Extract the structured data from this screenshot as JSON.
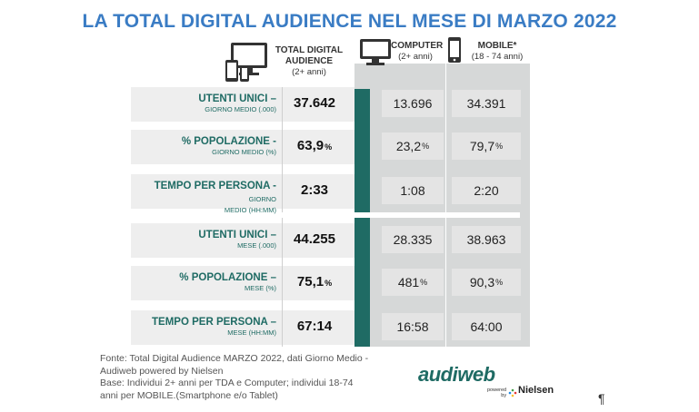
{
  "title": "LA TOTAL DIGITAL AUDIENCE NEL MESE DI MARZO 2022",
  "colors": {
    "title": "#3a7cc4",
    "label": "#1f6b64",
    "bar": "#1f6b64",
    "bg_panel": "#d6d8d8"
  },
  "headers": {
    "tda": {
      "label_line1": "TOTAL DIGITAL",
      "label_line2": "AUDIENCE",
      "sub": "(2+ anni)",
      "icon": "multi-device-icon"
    },
    "computer": {
      "label": "COMPUTER",
      "sub": "(2+ anni)",
      "icon": "monitor-icon"
    },
    "mobile": {
      "label": "MOBILE*",
      "sub": "(18 - 74 anni)",
      "icon": "smartphone-icon"
    }
  },
  "chart_data": {
    "type": "table",
    "columns": [
      "TOTAL DIGITAL AUDIENCE (2+ anni)",
      "COMPUTER (2+ anni)",
      "MOBILE* (18 - 74 anni)"
    ],
    "rows": [
      {
        "label": "UTENTI UNICI –",
        "sub": "GIORNO MEDIO (.000)",
        "tda": "37.642",
        "computer": "13.696",
        "mobile": "34.391",
        "pct": false
      },
      {
        "label": "% POPOLAZIONE -",
        "sub": "GIORNO MEDIO (%)",
        "tda": "63,9",
        "computer": "23,2",
        "mobile": "79,7",
        "pct": true
      },
      {
        "label": "TEMPO PER PERSONA -",
        "sub_inline": "GIORNO",
        "sub": "MEDIO (HH:MM)",
        "tda": "2:33",
        "computer": "1:08",
        "mobile": "2:20",
        "pct": false
      },
      {
        "label": "UTENTI UNICI –",
        "sub": "MESE (.000)",
        "tda": "44.255",
        "computer": "28.335",
        "mobile": "38.963",
        "pct": false
      },
      {
        "label": "% POPOLAZIONE –",
        "sub": "MESE (%)",
        "tda": "75,1",
        "computer": "481",
        "mobile": "90,3",
        "pct": true
      },
      {
        "label": "TEMPO PER PERSONA –",
        "sub": "MESE (HH:MM)",
        "tda": "67:14",
        "computer": "16:58",
        "mobile": "64:00",
        "pct": false
      }
    ]
  },
  "footer": {
    "line1": "Fonte: Total Digital Audience MARZO 2022, dati Giorno Medio -",
    "line2": "Audiweb powered by Nielsen",
    "line3": "Base:  Individui 2+ anni per TDA e Computer; individui 18-74",
    "line4": "anni per MOBILE.(Smartphone e/o Tablet)"
  },
  "logo": {
    "brand": "audiweb",
    "powered": "powered",
    "by": "by",
    "partner": "Nielsen"
  },
  "pilcrow": "¶"
}
